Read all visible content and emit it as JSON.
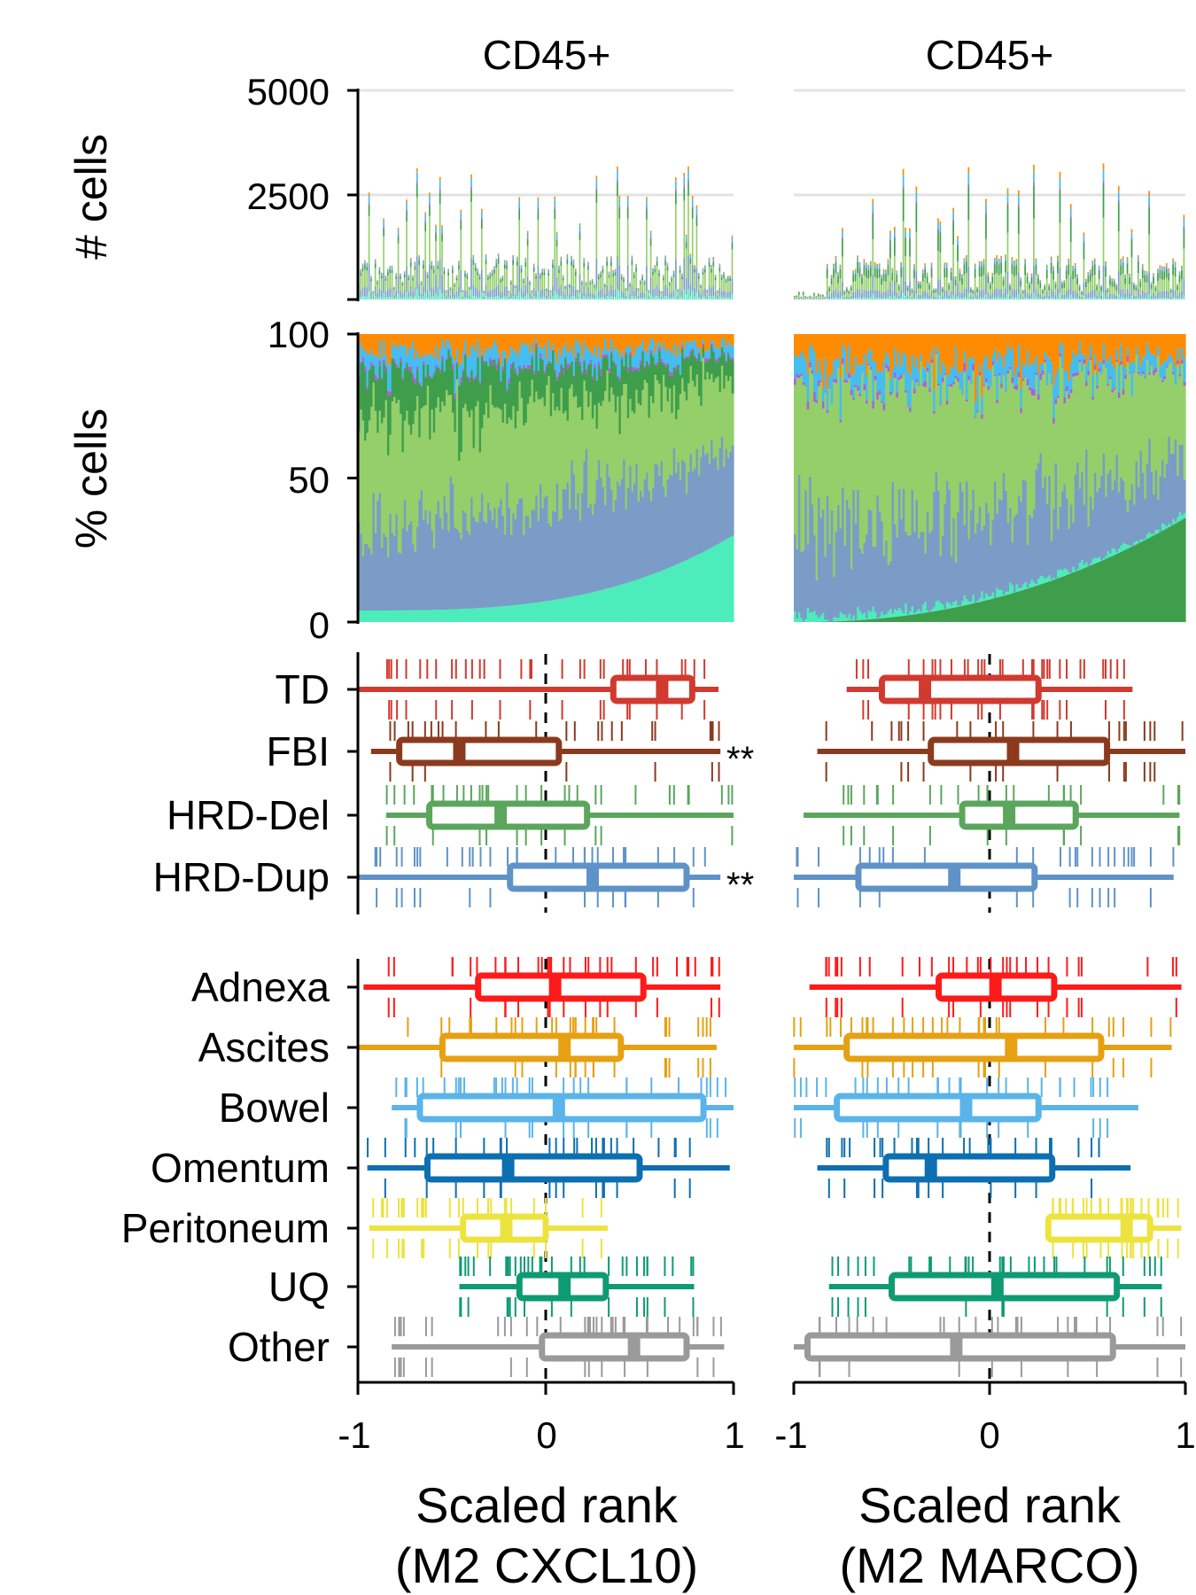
{
  "panels": [
    {
      "title": "CD45+",
      "xlabel_line1": "Scaled rank",
      "xlabel_line2": "(M2 CXCL10)"
    },
    {
      "title": "CD45+",
      "xlabel_line1": "Scaled rank",
      "xlabel_line2": "(M2 MARCO)"
    }
  ],
  "y_labels": {
    "counts": "# cells",
    "percent": "% cells"
  },
  "counts_axis": {
    "ticks": [
      5000,
      2500
    ],
    "ylim": [
      0,
      5000
    ]
  },
  "percent_axis": {
    "ticks": [
      100,
      50,
      0
    ],
    "ylim": [
      0,
      100
    ]
  },
  "x_axis": {
    "ticks": [
      "-1",
      "0",
      "1"
    ],
    "xlim": [
      -1,
      1
    ]
  },
  "bar_colors": [
    "#4ced BB",
    "#7a9cc6",
    "#94cf6a",
    "#3e9e4c",
    "#b05fd6",
    "#45bdf0",
    "#ff8c00"
  ],
  "chart_data": [
    {
      "type": "box",
      "panel": "M2 CXCL10",
      "groups": [
        {
          "label": "TD",
          "color": "#d13a2f",
          "min": -1.0,
          "q1": 0.36,
          "median": 0.62,
          "q3": 0.78,
          "max": 0.92,
          "sig": ""
        },
        {
          "label": "FBI",
          "color": "#8b3a1e",
          "min": -0.93,
          "q1": -0.78,
          "median": -0.46,
          "q3": 0.07,
          "max": 0.93,
          "sig": "**"
        },
        {
          "label": "HRD-Del",
          "color": "#5ba65c",
          "min": -0.85,
          "q1": -0.62,
          "median": -0.24,
          "q3": 0.22,
          "max": 1.0,
          "sig": ""
        },
        {
          "label": "HRD-Dup",
          "color": "#5f93c7",
          "min": -1.0,
          "q1": -0.19,
          "median": 0.25,
          "q3": 0.75,
          "max": 0.93,
          "sig": "**"
        },
        {
          "label": "Adnexa",
          "color": "#ff1a1a",
          "min": -0.97,
          "q1": -0.36,
          "median": 0.05,
          "q3": 0.52,
          "max": 0.93,
          "sig": ""
        },
        {
          "label": "Ascites",
          "color": "#e6a012",
          "min": -1.0,
          "q1": -0.55,
          "median": 0.1,
          "q3": 0.4,
          "max": 0.91,
          "sig": ""
        },
        {
          "label": "Bowel",
          "color": "#5ab4ea",
          "min": -0.82,
          "q1": -0.67,
          "median": 0.07,
          "q3": 0.84,
          "max": 1.0,
          "sig": ""
        },
        {
          "label": "Omentum",
          "color": "#0c6fb2",
          "min": -0.95,
          "q1": -0.63,
          "median": -0.2,
          "q3": 0.5,
          "max": 0.98,
          "sig": ""
        },
        {
          "label": "Peritoneum",
          "color": "#ede33f",
          "min": -0.94,
          "q1": -0.44,
          "median": -0.21,
          "q3": 0.0,
          "max": 0.33,
          "sig": ""
        },
        {
          "label": "UQ",
          "color": "#0e9b73",
          "min": -0.46,
          "q1": -0.14,
          "median": 0.1,
          "q3": 0.32,
          "max": 0.79,
          "sig": ""
        },
        {
          "label": "Other",
          "color": "#9a9a9a",
          "min": -0.82,
          "q1": -0.02,
          "median": 0.47,
          "q3": 0.75,
          "max": 0.95,
          "sig": ""
        }
      ]
    },
    {
      "type": "box",
      "panel": "M2 MARCO",
      "groups": [
        {
          "label": "TD",
          "color": "#d13a2f",
          "min": -0.73,
          "q1": -0.55,
          "median": -0.33,
          "q3": 0.25,
          "max": 0.73,
          "sig": ""
        },
        {
          "label": "FBI",
          "color": "#8b3a1e",
          "min": -0.88,
          "q1": -0.3,
          "median": 0.12,
          "q3": 0.6,
          "max": 1.0,
          "sig": ""
        },
        {
          "label": "HRD-Del",
          "color": "#5ba65c",
          "min": -0.95,
          "q1": -0.14,
          "median": 0.1,
          "q3": 0.44,
          "max": 0.97,
          "sig": ""
        },
        {
          "label": "HRD-Dup",
          "color": "#5f93c7",
          "min": -1.0,
          "q1": -0.67,
          "median": -0.18,
          "q3": 0.23,
          "max": 0.94,
          "sig": ""
        },
        {
          "label": "Adnexa",
          "color": "#ff1a1a",
          "min": -0.92,
          "q1": -0.26,
          "median": 0.03,
          "q3": 0.33,
          "max": 0.98,
          "sig": ""
        },
        {
          "label": "Ascites",
          "color": "#e6a012",
          "min": -1.0,
          "q1": -0.73,
          "median": 0.11,
          "q3": 0.57,
          "max": 0.93,
          "sig": ""
        },
        {
          "label": "Bowel",
          "color": "#5ab4ea",
          "min": -1.0,
          "q1": -0.78,
          "median": -0.12,
          "q3": 0.25,
          "max": 0.76,
          "sig": ""
        },
        {
          "label": "Omentum",
          "color": "#0c6fb2",
          "min": -0.88,
          "q1": -0.53,
          "median": -0.3,
          "q3": 0.32,
          "max": 0.72,
          "sig": ""
        },
        {
          "label": "Peritoneum",
          "color": "#ede33f",
          "min": 0.3,
          "q1": 0.3,
          "median": 0.7,
          "q3": 0.82,
          "max": 0.98,
          "sig": ""
        },
        {
          "label": "UQ",
          "color": "#0e9b73",
          "min": -0.82,
          "q1": -0.5,
          "median": 0.04,
          "q3": 0.65,
          "max": 0.88,
          "sig": ""
        },
        {
          "label": "Other",
          "color": "#9a9a9a",
          "min": -1.0,
          "q1": -0.93,
          "median": -0.17,
          "q3": 0.63,
          "max": 1.0,
          "sig": ""
        }
      ]
    }
  ]
}
